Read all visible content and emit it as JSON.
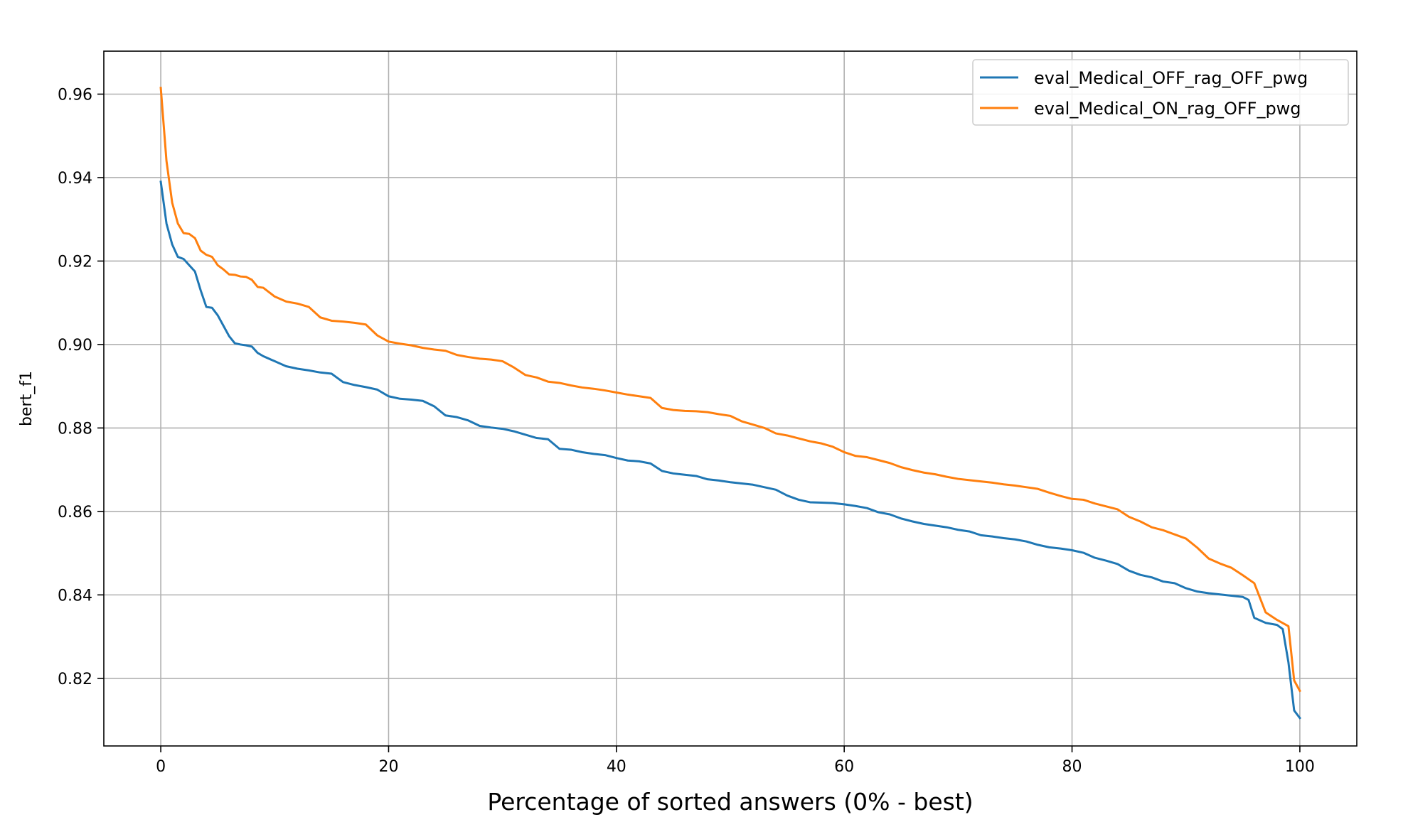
{
  "chart_data": {
    "type": "line",
    "title": "",
    "xlabel": "Percentage of sorted answers (0% - best)",
    "ylabel": "bert_f1",
    "xlim": [
      -5,
      105
    ],
    "ylim": [
      0.8038,
      0.9703
    ],
    "xticks": [
      0,
      20,
      40,
      60,
      80,
      100
    ],
    "xtick_labels": [
      "0",
      "20",
      "40",
      "60",
      "80",
      "100"
    ],
    "yticks": [
      0.82,
      0.84,
      0.86,
      0.88,
      0.9,
      0.92,
      0.94,
      0.96
    ],
    "ytick_labels": [
      "0.82",
      "0.84",
      "0.86",
      "0.88",
      "0.90",
      "0.92",
      "0.94",
      "0.96"
    ],
    "grid": true,
    "legend_position": "top-right",
    "series": [
      {
        "name": "eval_Medical_OFF_rag_OFF_pwg",
        "color": "#1f77b4",
        "x": [
          0,
          0.5,
          1,
          1.5,
          2,
          2.5,
          3,
          3.5,
          4,
          4.5,
          5,
          5.5,
          6,
          6.5,
          7,
          7.5,
          8,
          8.5,
          9,
          10,
          11,
          12,
          13,
          14,
          15,
          16,
          17,
          18,
          19,
          20,
          21,
          22,
          23,
          24,
          25,
          26,
          27,
          28,
          29,
          30,
          31,
          32,
          33,
          34,
          35,
          36,
          37,
          38,
          39,
          40,
          41,
          42,
          43,
          44,
          45,
          46,
          47,
          48,
          49,
          50,
          51,
          52,
          53,
          54,
          55,
          56,
          57,
          58,
          59,
          60,
          61,
          62,
          63,
          64,
          65,
          66,
          67,
          68,
          69,
          70,
          71,
          72,
          73,
          74,
          75,
          76,
          77,
          78,
          79,
          80,
          81,
          82,
          83,
          84,
          85,
          86,
          87,
          88,
          89,
          90,
          91,
          92,
          93,
          94,
          95,
          95.5,
          96,
          97,
          98,
          98.5,
          99,
          99.5,
          100
        ],
        "y": [
          0.939,
          0.929,
          0.924,
          0.921,
          0.9205,
          0.919,
          0.9175,
          0.913,
          0.909,
          0.9088,
          0.907,
          0.9045,
          0.902,
          0.9003,
          0.9,
          0.8998,
          0.8995,
          0.898,
          0.8972,
          0.896,
          0.8948,
          0.8942,
          0.8938,
          0.8933,
          0.893,
          0.891,
          0.8903,
          0.8898,
          0.8892,
          0.8876,
          0.887,
          0.8868,
          0.8865,
          0.8852,
          0.883,
          0.8826,
          0.8818,
          0.8805,
          0.8801,
          0.8798,
          0.8792,
          0.8784,
          0.8776,
          0.8773,
          0.875,
          0.8748,
          0.8742,
          0.8738,
          0.8735,
          0.8728,
          0.8722,
          0.872,
          0.8715,
          0.8697,
          0.8691,
          0.8688,
          0.8685,
          0.8677,
          0.8674,
          0.867,
          0.8667,
          0.8664,
          0.8658,
          0.8652,
          0.8638,
          0.8628,
          0.8622,
          0.8621,
          0.862,
          0.8617,
          0.8613,
          0.8608,
          0.8598,
          0.8593,
          0.8583,
          0.8576,
          0.857,
          0.8566,
          0.8562,
          0.8556,
          0.8552,
          0.8543,
          0.854,
          0.8536,
          0.8533,
          0.8528,
          0.852,
          0.8514,
          0.8511,
          0.8507,
          0.8501,
          0.8489,
          0.8482,
          0.8474,
          0.8458,
          0.8448,
          0.8442,
          0.8432,
          0.8428,
          0.8416,
          0.8408,
          0.8404,
          0.8401,
          0.8398,
          0.8395,
          0.8388,
          0.8345,
          0.8333,
          0.8328,
          0.8318,
          0.8238,
          0.8123,
          0.8105
        ]
      },
      {
        "name": "eval_Medical_ON_rag_OFF_pwg",
        "color": "#ff7f0e",
        "x": [
          0,
          0.5,
          1,
          1.5,
          2,
          2.5,
          3,
          3.5,
          4,
          4.5,
          5,
          5.5,
          6,
          6.5,
          7,
          7.5,
          8,
          8.5,
          9,
          10,
          11,
          12,
          13,
          14,
          15,
          16,
          17,
          18,
          19,
          20,
          21,
          22,
          23,
          24,
          25,
          26,
          27,
          28,
          29,
          30,
          31,
          32,
          33,
          34,
          35,
          36,
          37,
          38,
          39,
          40,
          41,
          42,
          43,
          44,
          45,
          46,
          47,
          48,
          49,
          50,
          51,
          52,
          53,
          54,
          55,
          56,
          57,
          58,
          59,
          60,
          61,
          62,
          63,
          64,
          65,
          66,
          67,
          68,
          69,
          70,
          71,
          72,
          73,
          74,
          75,
          76,
          77,
          78,
          79,
          80,
          81,
          82,
          83,
          84,
          85,
          86,
          87,
          88,
          89,
          90,
          91,
          92,
          93,
          94,
          95,
          96,
          97,
          98,
          99,
          99.5,
          100
        ],
        "y": [
          0.9615,
          0.944,
          0.934,
          0.929,
          0.9267,
          0.9265,
          0.9255,
          0.9225,
          0.9215,
          0.921,
          0.919,
          0.918,
          0.9168,
          0.9167,
          0.9163,
          0.9162,
          0.9155,
          0.9138,
          0.9136,
          0.9115,
          0.9103,
          0.9098,
          0.909,
          0.9065,
          0.9057,
          0.9055,
          0.9052,
          0.9048,
          0.9022,
          0.9007,
          0.9002,
          0.8998,
          0.8992,
          0.8988,
          0.8985,
          0.8975,
          0.897,
          0.8966,
          0.8964,
          0.896,
          0.8945,
          0.8927,
          0.8921,
          0.8911,
          0.8908,
          0.8902,
          0.8897,
          0.8894,
          0.889,
          0.8885,
          0.888,
          0.8876,
          0.8872,
          0.8848,
          0.8843,
          0.8841,
          0.884,
          0.8838,
          0.8833,
          0.8829,
          0.8816,
          0.8808,
          0.88,
          0.8787,
          0.8782,
          0.8775,
          0.8768,
          0.8763,
          0.8755,
          0.8742,
          0.8733,
          0.873,
          0.8723,
          0.8716,
          0.8706,
          0.8699,
          0.8693,
          0.8689,
          0.8683,
          0.8678,
          0.8675,
          0.8672,
          0.8669,
          0.8665,
          0.8662,
          0.8658,
          0.8654,
          0.8645,
          0.8637,
          0.863,
          0.8628,
          0.8619,
          0.8612,
          0.8605,
          0.8587,
          0.8576,
          0.8562,
          0.8555,
          0.8545,
          0.8535,
          0.8513,
          0.8487,
          0.8475,
          0.8465,
          0.8447,
          0.8428,
          0.8358,
          0.834,
          0.8325,
          0.8195,
          0.817
        ]
      }
    ]
  }
}
